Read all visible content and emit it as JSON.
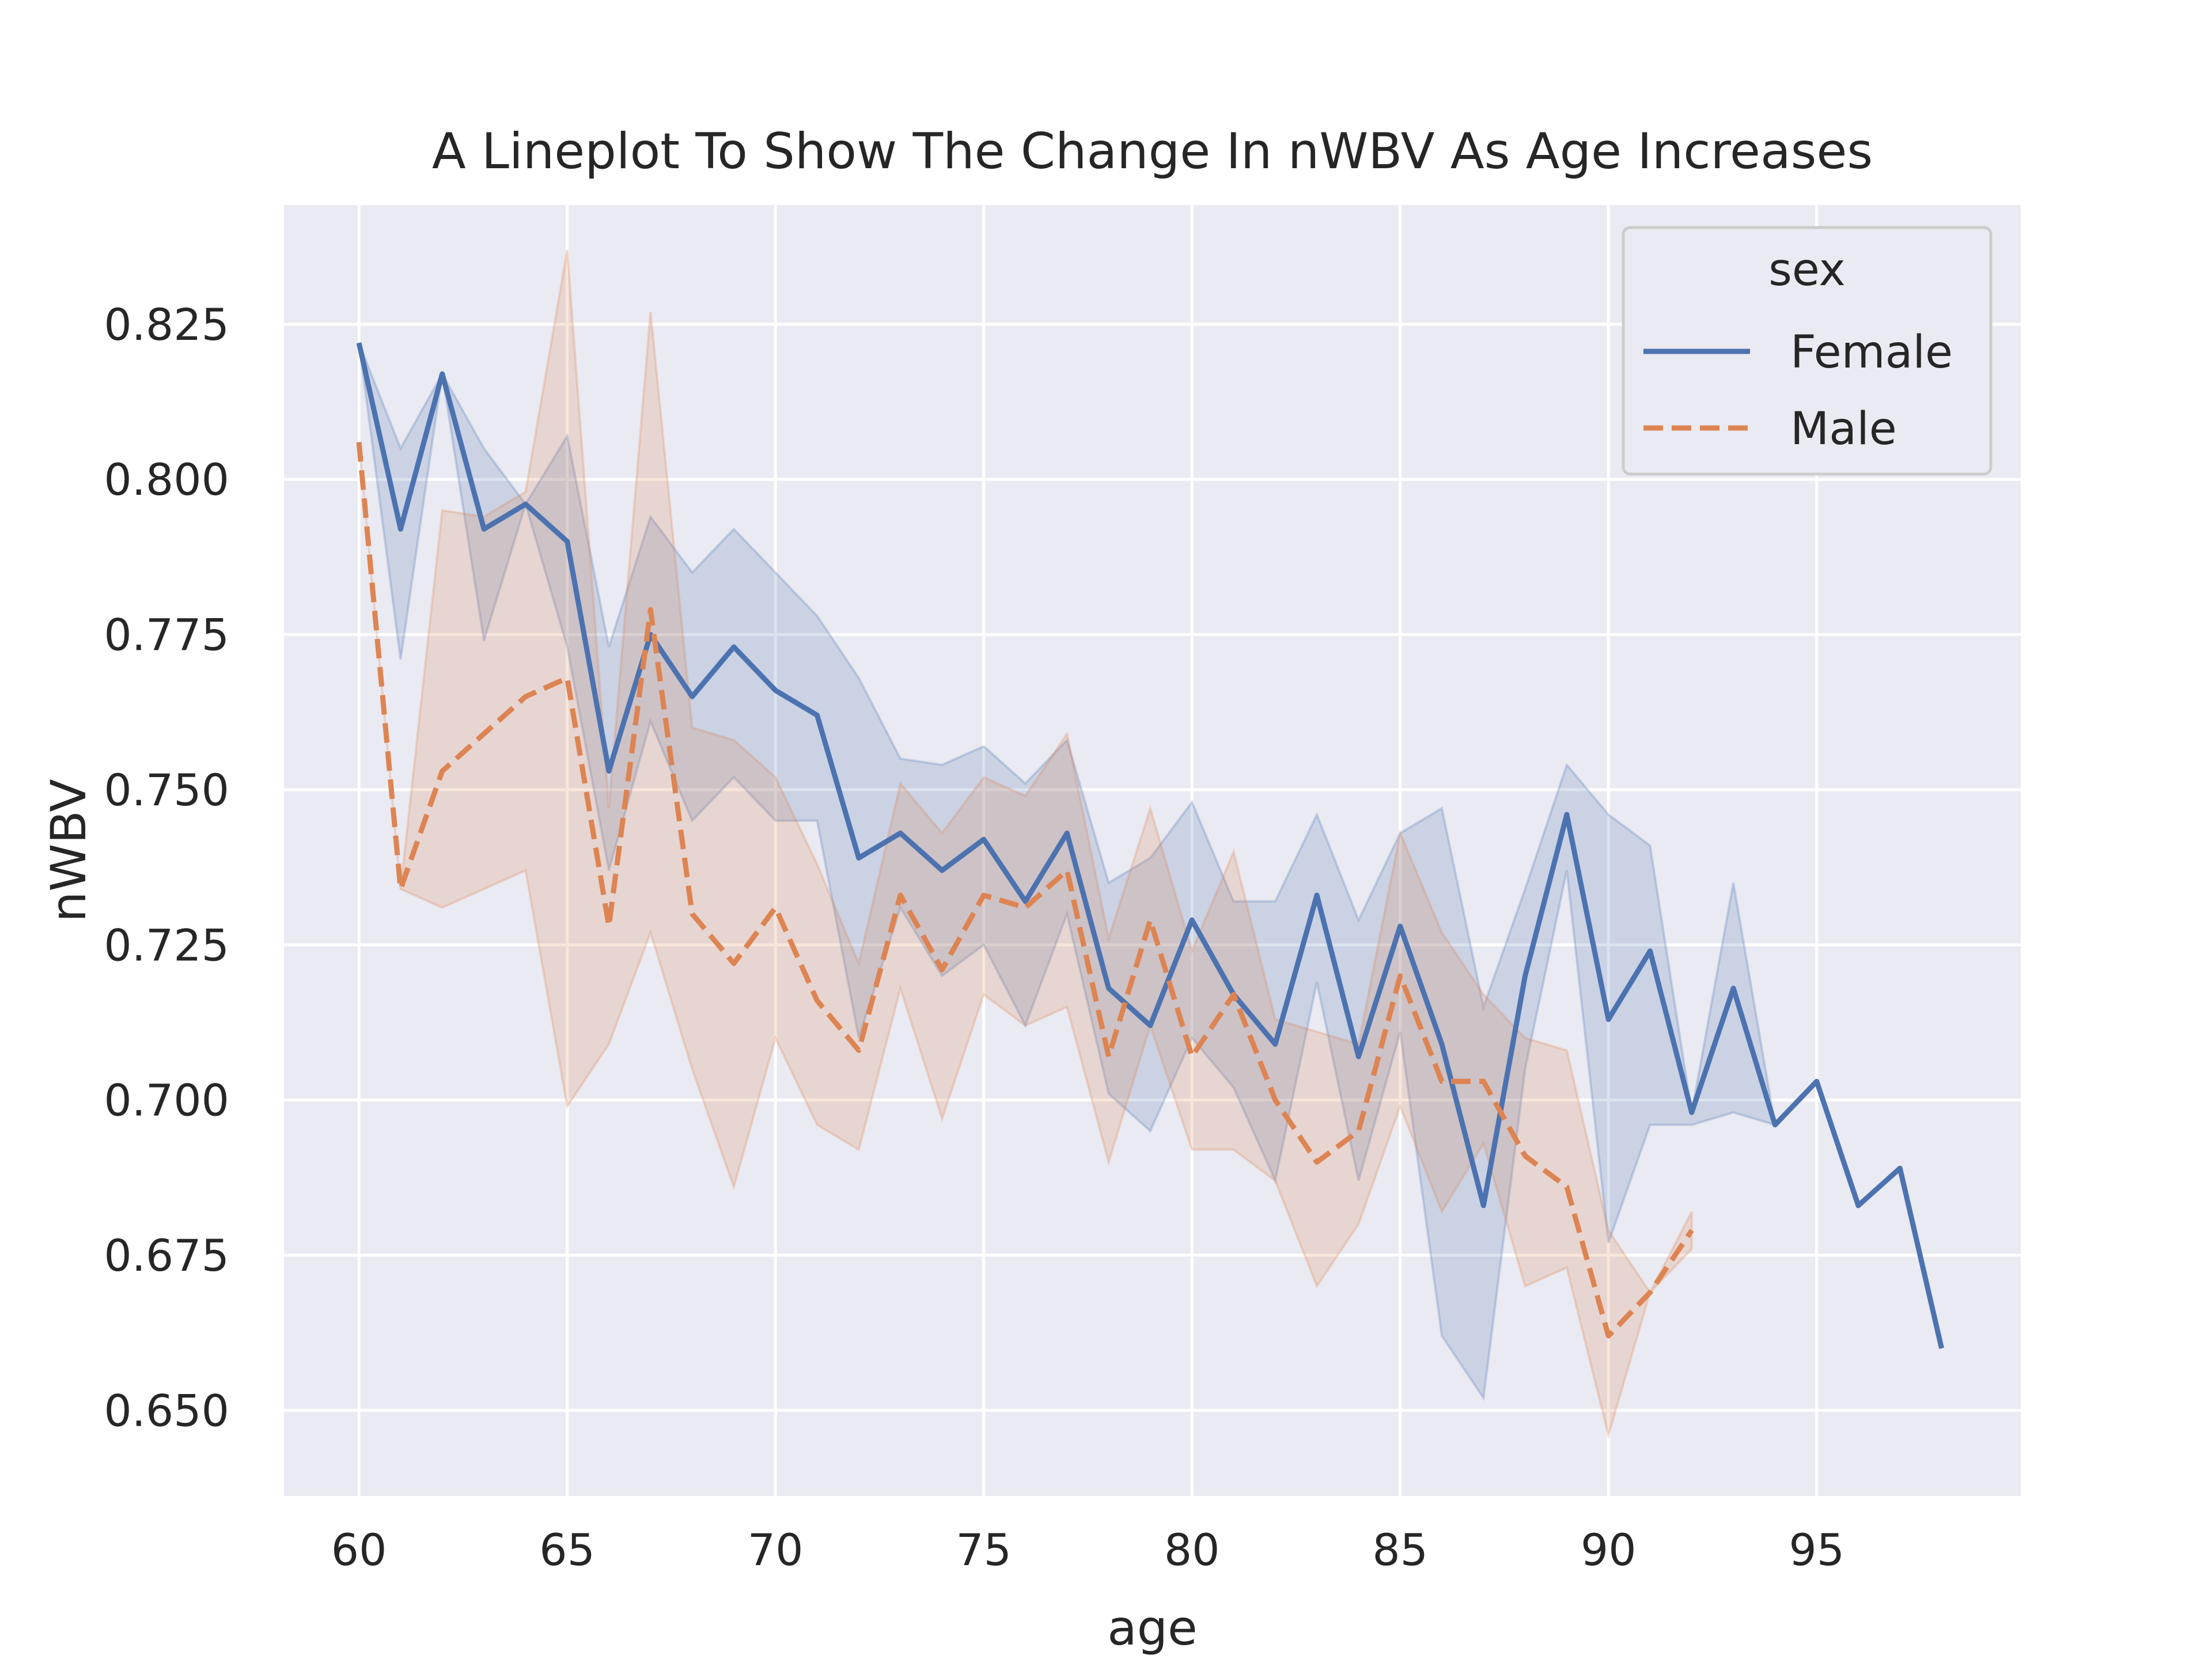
{
  "chart_data": {
    "type": "line",
    "title": "A Lineplot To Show The Change In nWBV As Age Increases",
    "xlabel": "age",
    "ylabel": "nWBV",
    "xlim": [
      58.2,
      99.9
    ],
    "ylim": [
      0.6362,
      0.8442
    ],
    "x_ticks": [
      60,
      65,
      70,
      75,
      80,
      85,
      90,
      95
    ],
    "y_ticks": [
      0.65,
      0.675,
      0.7,
      0.725,
      0.75,
      0.775,
      0.8,
      0.825
    ],
    "x_tick_labels": [
      "60",
      "65",
      "70",
      "75",
      "80",
      "85",
      "90",
      "95"
    ],
    "y_tick_labels": [
      "0.650",
      "0.675",
      "0.700",
      "0.725",
      "0.750",
      "0.775",
      "0.800",
      "0.825"
    ],
    "grid": true,
    "background": "#EAEAF2",
    "legend": {
      "title": "sex",
      "placement": "top-right"
    },
    "series": [
      {
        "name": "Female",
        "color": "#4C72B0",
        "style": "solid",
        "points": [
          [
            60,
            0.822
          ],
          [
            61,
            0.792
          ],
          [
            62,
            0.817
          ],
          [
            63,
            0.792
          ],
          [
            64,
            0.796
          ],
          [
            65,
            0.79
          ],
          [
            66,
            0.753
          ],
          [
            67,
            0.775
          ],
          [
            68,
            0.765
          ],
          [
            69,
            0.773
          ],
          [
            70,
            0.766
          ],
          [
            71,
            0.762
          ],
          [
            72,
            0.739
          ],
          [
            73,
            0.743
          ],
          [
            74,
            0.737
          ],
          [
            75,
            0.742
          ],
          [
            76,
            0.732
          ],
          [
            77,
            0.743
          ],
          [
            78,
            0.718
          ],
          [
            79,
            0.712
          ],
          [
            80,
            0.729
          ],
          [
            81,
            0.717
          ],
          [
            82,
            0.709
          ],
          [
            83,
            0.733
          ],
          [
            84,
            0.707
          ],
          [
            85,
            0.728
          ],
          [
            86,
            0.709
          ],
          [
            87,
            0.683
          ],
          [
            88,
            0.72
          ],
          [
            89,
            0.746
          ],
          [
            90,
            0.713
          ],
          [
            91,
            0.724
          ],
          [
            92,
            0.698
          ],
          [
            93,
            0.718
          ],
          [
            94,
            0.696
          ],
          [
            95,
            0.703
          ],
          [
            96,
            0.683
          ],
          [
            97,
            0.689
          ],
          [
            98,
            0.66
          ]
        ],
        "ci_upper": [
          [
            60,
            0.822
          ],
          [
            61,
            0.805
          ],
          [
            62,
            0.817
          ],
          [
            63,
            0.805
          ],
          [
            64,
            0.796
          ],
          [
            65,
            0.807
          ],
          [
            66,
            0.773
          ],
          [
            67,
            0.794
          ],
          [
            68,
            0.785
          ],
          [
            69,
            0.792
          ],
          [
            70,
            0.785
          ],
          [
            71,
            0.778
          ],
          [
            72,
            0.768
          ],
          [
            73,
            0.755
          ],
          [
            74,
            0.754
          ],
          [
            75,
            0.757
          ],
          [
            76,
            0.751
          ],
          [
            77,
            0.758
          ],
          [
            78,
            0.735
          ],
          [
            79,
            0.739
          ],
          [
            80,
            0.748
          ],
          [
            81,
            0.732
          ],
          [
            82,
            0.732
          ],
          [
            83,
            0.746
          ],
          [
            84,
            0.729
          ],
          [
            85,
            0.743
          ],
          [
            86,
            0.747
          ],
          [
            87,
            0.715
          ],
          [
            88,
            0.734
          ],
          [
            89,
            0.754
          ],
          [
            90,
            0.746
          ],
          [
            91,
            0.741
          ],
          [
            92,
            0.698
          ],
          [
            93,
            0.735
          ],
          [
            94,
            0.696
          ],
          [
            95,
            0.703
          ],
          [
            96,
            0.683
          ],
          [
            97,
            0.689
          ],
          [
            98,
            0.66
          ]
        ],
        "ci_lower": [
          [
            60,
            0.822
          ],
          [
            61,
            0.771
          ],
          [
            62,
            0.817
          ],
          [
            63,
            0.774
          ],
          [
            64,
            0.796
          ],
          [
            65,
            0.773
          ],
          [
            66,
            0.737
          ],
          [
            67,
            0.761
          ],
          [
            68,
            0.745
          ],
          [
            69,
            0.752
          ],
          [
            70,
            0.745
          ],
          [
            71,
            0.745
          ],
          [
            72,
            0.71
          ],
          [
            73,
            0.731
          ],
          [
            74,
            0.72
          ],
          [
            75,
            0.725
          ],
          [
            76,
            0.712
          ],
          [
            77,
            0.73
          ],
          [
            78,
            0.701
          ],
          [
            79,
            0.695
          ],
          [
            80,
            0.71
          ],
          [
            81,
            0.702
          ],
          [
            82,
            0.687
          ],
          [
            83,
            0.719
          ],
          [
            84,
            0.687
          ],
          [
            85,
            0.711
          ],
          [
            86,
            0.662
          ],
          [
            87,
            0.652
          ],
          [
            88,
            0.705
          ],
          [
            89,
            0.737
          ],
          [
            90,
            0.677
          ],
          [
            91,
            0.696
          ],
          [
            92,
            0.696
          ],
          [
            93,
            0.698
          ],
          [
            94,
            0.696
          ],
          [
            95,
            0.703
          ],
          [
            96,
            0.683
          ],
          [
            97,
            0.689
          ],
          [
            98,
            0.66
          ]
        ]
      },
      {
        "name": "Male",
        "color": "#DD8452",
        "style": "dashed",
        "points": [
          [
            60,
            0.806
          ],
          [
            61,
            0.734
          ],
          [
            62,
            0.753
          ],
          [
            63,
            0.759
          ],
          [
            64,
            0.765
          ],
          [
            65,
            0.768
          ],
          [
            66,
            0.728
          ],
          [
            67,
            0.779
          ],
          [
            68,
            0.73
          ],
          [
            69,
            0.722
          ],
          [
            70,
            0.731
          ],
          [
            71,
            0.716
          ],
          [
            72,
            0.708
          ],
          [
            73,
            0.733
          ],
          [
            74,
            0.721
          ],
          [
            75,
            0.733
          ],
          [
            76,
            0.731
          ],
          [
            77,
            0.737
          ],
          [
            78,
            0.707
          ],
          [
            79,
            0.729
          ],
          [
            80,
            0.707
          ],
          [
            81,
            0.717
          ],
          [
            82,
            0.7
          ],
          [
            83,
            0.69
          ],
          [
            84,
            0.695
          ],
          [
            85,
            0.72
          ],
          [
            86,
            0.703
          ],
          [
            87,
            0.703
          ],
          [
            88,
            0.691
          ],
          [
            89,
            0.686
          ],
          [
            90,
            0.662
          ],
          [
            91,
            0.669
          ],
          [
            92,
            0.679
          ]
        ],
        "ci_upper": [
          [
            60,
            0.806
          ],
          [
            61,
            0.734
          ],
          [
            62,
            0.795
          ],
          [
            63,
            0.794
          ],
          [
            64,
            0.798
          ],
          [
            65,
            0.837
          ],
          [
            66,
            0.747
          ],
          [
            67,
            0.827
          ],
          [
            68,
            0.76
          ],
          [
            69,
            0.758
          ],
          [
            70,
            0.752
          ],
          [
            71,
            0.738
          ],
          [
            72,
            0.722
          ],
          [
            73,
            0.751
          ],
          [
            74,
            0.743
          ],
          [
            75,
            0.752
          ],
          [
            76,
            0.749
          ],
          [
            77,
            0.759
          ],
          [
            78,
            0.726
          ],
          [
            79,
            0.747
          ],
          [
            80,
            0.724
          ],
          [
            81,
            0.74
          ],
          [
            82,
            0.713
          ],
          [
            83,
            0.711
          ],
          [
            84,
            0.709
          ],
          [
            85,
            0.743
          ],
          [
            86,
            0.727
          ],
          [
            87,
            0.717
          ],
          [
            88,
            0.71
          ],
          [
            89,
            0.708
          ],
          [
            90,
            0.679
          ],
          [
            91,
            0.669
          ],
          [
            92,
            0.682
          ]
        ],
        "ci_lower": [
          [
            60,
            0.806
          ],
          [
            61,
            0.734
          ],
          [
            62,
            0.731
          ],
          [
            63,
            0.734
          ],
          [
            64,
            0.737
          ],
          [
            65,
            0.699
          ],
          [
            66,
            0.709
          ],
          [
            67,
            0.727
          ],
          [
            68,
            0.705
          ],
          [
            69,
            0.686
          ],
          [
            70,
            0.71
          ],
          [
            71,
            0.696
          ],
          [
            72,
            0.692
          ],
          [
            73,
            0.718
          ],
          [
            74,
            0.697
          ],
          [
            75,
            0.717
          ],
          [
            76,
            0.712
          ],
          [
            77,
            0.715
          ],
          [
            78,
            0.69
          ],
          [
            79,
            0.712
          ],
          [
            80,
            0.692
          ],
          [
            81,
            0.692
          ],
          [
            82,
            0.687
          ],
          [
            83,
            0.67
          ],
          [
            84,
            0.68
          ],
          [
            85,
            0.699
          ],
          [
            86,
            0.682
          ],
          [
            87,
            0.693
          ],
          [
            88,
            0.67
          ],
          [
            89,
            0.673
          ],
          [
            90,
            0.646
          ],
          [
            91,
            0.669
          ],
          [
            92,
            0.676
          ]
        ]
      }
    ]
  }
}
